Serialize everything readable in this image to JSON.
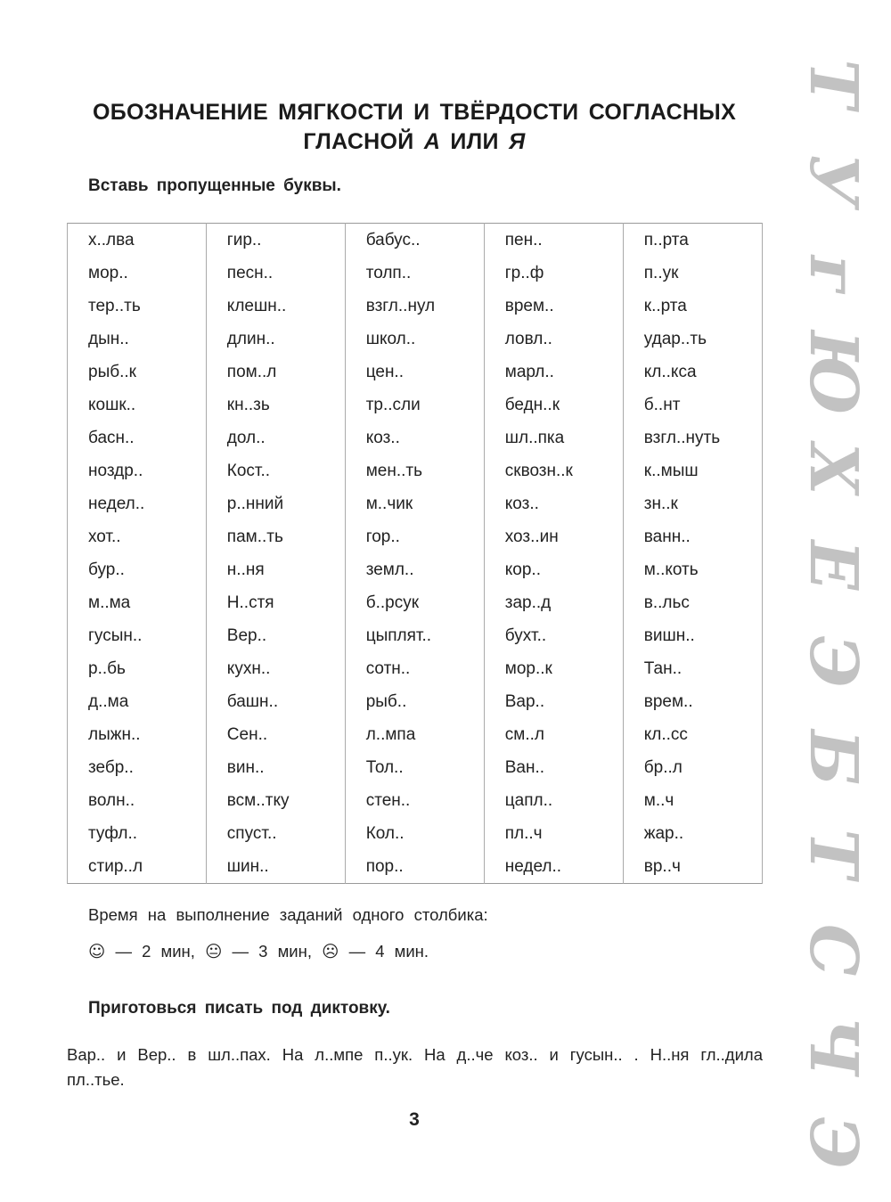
{
  "title": {
    "line1": "ОБОЗНАЧЕНИЕ МЯГКОСТИ И ТВЁРДОСТИ СОГЛАСНЫХ",
    "line2_prefix": "ГЛАСНОЙ ",
    "letter_a": "А",
    "middle": " ИЛИ ",
    "letter_ya": "Я"
  },
  "task1": "Вставь пропущенные буквы.",
  "table": {
    "rows": [
      [
        "х..лва",
        "гир..",
        "бабус..",
        "пен..",
        "п..рта"
      ],
      [
        "мор..",
        "песн..",
        "толп..",
        "гр..ф",
        "п..ук"
      ],
      [
        "тер..ть",
        "клешн..",
        "взгл..нул",
        "врем..",
        "к..рта"
      ],
      [
        "дын..",
        "длин..",
        "школ..",
        "ловл..",
        "удар..ть"
      ],
      [
        "рыб..к",
        "пом..л",
        "цен..",
        "марл..",
        "кл..кса"
      ],
      [
        "кошк..",
        "кн..зь",
        "тр..сли",
        "бедн..к",
        "б..нт"
      ],
      [
        "басн..",
        "дол..",
        "коз..",
        "шл..пка",
        "взгл..нуть"
      ],
      [
        "ноздр..",
        "Кост..",
        "мен..ть",
        "сквозн..к",
        "к..мыш"
      ],
      [
        "недел..",
        "р..нний",
        "м..чик",
        "коз..",
        "зн..к"
      ],
      [
        "хот..",
        "пам..ть",
        "гор..",
        "хоз..ин",
        "ванн.."
      ],
      [
        "бур..",
        "н..ня",
        "земл..",
        "кор..",
        "м..коть"
      ],
      [
        "м..ма",
        "Н..стя",
        "б..рсук",
        "зар..д",
        "в..льс"
      ],
      [
        "гусын..",
        "Вер..",
        "цыплят..",
        "бухт..",
        "вишн.."
      ],
      [
        "р..бь",
        "кухн..",
        "сотн..",
        "мор..к",
        "Тан.."
      ],
      [
        "д..ма",
        "башн..",
        "рыб..",
        "Вар..",
        "врем.."
      ],
      [
        "лыжн..",
        "Сен..",
        "л..мпа",
        "см..л",
        "кл..сс"
      ],
      [
        "зебр..",
        "вин..",
        "Тол..",
        "Ван..",
        "бр..л"
      ],
      [
        "волн..",
        "всм..тку",
        "стен..",
        "цапл..",
        "м..ч"
      ],
      [
        "туфл..",
        "спуст..",
        "Кол..",
        "пл..ч",
        "жар.."
      ],
      [
        "стир..л",
        "шин..",
        "пор..",
        "недел..",
        "вр..ч"
      ]
    ]
  },
  "time": {
    "label": "Время на выполнение заданий одного столбика:",
    "items": [
      {
        "icon": "smiling-face-icon",
        "glyph": "☺",
        "text": "— 2 мин,"
      },
      {
        "icon": "neutral-face-icon",
        "glyph": "😐",
        "text": "— 3 мин,"
      },
      {
        "icon": "frowning-face-icon",
        "glyph": "☹",
        "text": "— 4 мин."
      }
    ]
  },
  "task2": "Приготовься писать под диктовку.",
  "dictation": "Вар.. и Вер.. в шл..пах. На л..мпе п..ук. На д..че коз.. и гусын.. . Н..ня гл..дила пл..тье.",
  "page_number": "3",
  "decoration": {
    "letters": [
      "Т",
      "У",
      "г",
      "Ю",
      "Х",
      "Е",
      "Э",
      "Б",
      "Т",
      "С",
      "Ч",
      "Э"
    ],
    "color": "#c2c2c2"
  }
}
